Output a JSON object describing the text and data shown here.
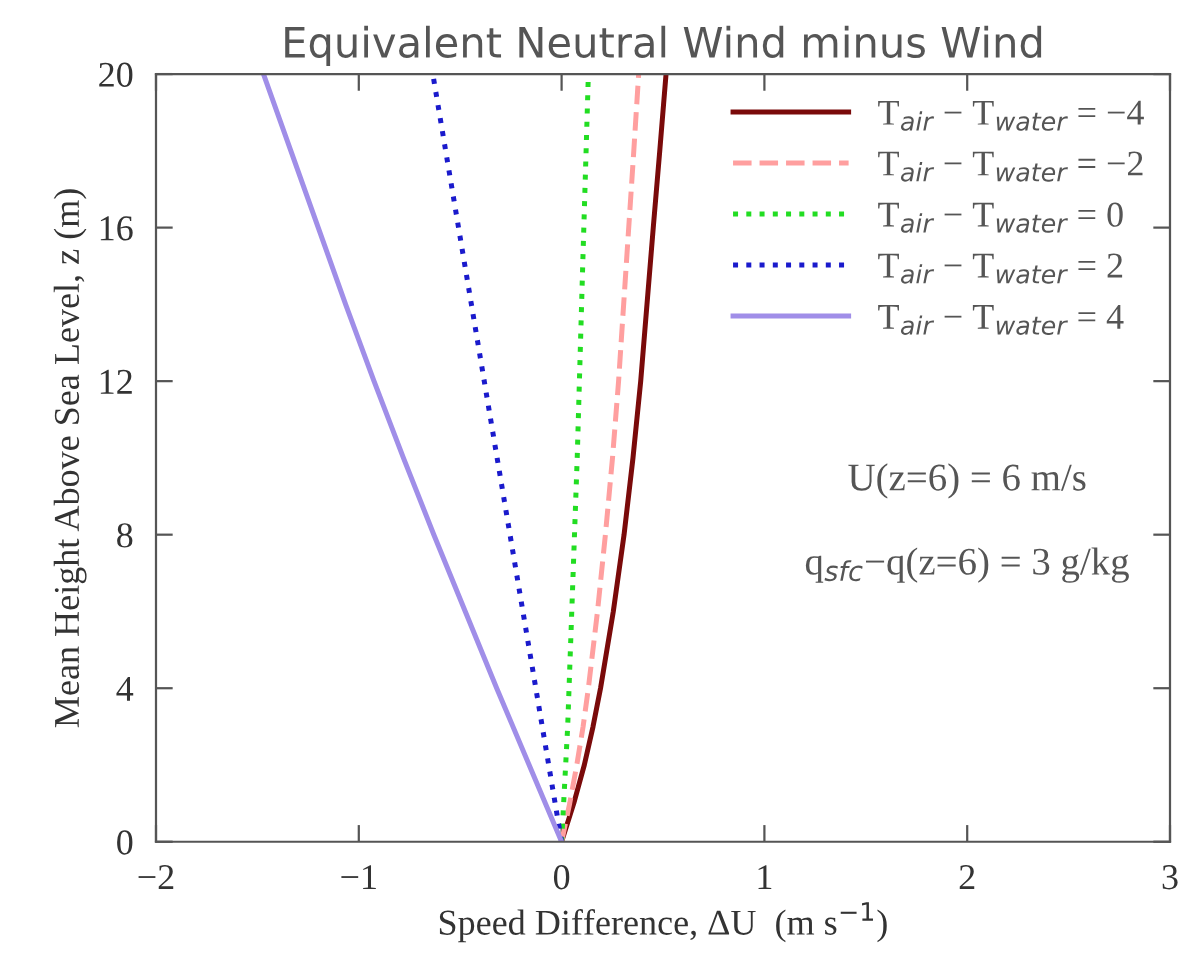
{
  "chart_data": {
    "type": "line",
    "title": "Equivalent Neutral Wind minus Wind",
    "xlabel": "Speed Difference, ΔU  (m s$^{−1}$)",
    "ylabel": "Mean Height Above Sea Level, z (m)",
    "xlim": [
      -2,
      3
    ],
    "ylim": [
      0,
      20
    ],
    "xticks": [
      -2,
      -1,
      0,
      1,
      2,
      3
    ],
    "yticks": [
      0,
      4,
      8,
      12,
      16,
      20
    ],
    "legend": "top right",
    "annotations": [
      "U(z=6) = 6 m/s",
      "q$_{sfc}$−q(z=6) = 3 g/kg"
    ],
    "series": [
      {
        "name": "T$_{air}$ − T$_{water}$ = −4",
        "color": "#7a0a0a",
        "line_style": "solid",
        "x": [
          0,
          0.06,
          0.112,
          0.155,
          0.192,
          0.255,
          0.308,
          0.352,
          0.39,
          0.421,
          0.452,
          0.484,
          0.515
        ],
        "values": [
          0,
          1,
          2,
          3,
          4,
          6,
          8,
          10,
          12,
          14,
          16,
          18,
          20
        ]
      },
      {
        "name": "T$_{air}$ − T$_{water}$ = −2",
        "color": "#ff9f9f",
        "line_style": "dashed",
        "x": [
          0,
          0.04,
          0.075,
          0.106,
          0.132,
          0.177,
          0.216,
          0.251,
          0.281,
          0.306,
          0.331,
          0.356,
          0.38
        ],
        "values": [
          0,
          1,
          2,
          3,
          4,
          6,
          8,
          10,
          12,
          14,
          16,
          18,
          20
        ]
      },
      {
        "name": "T$_{air}$ − T$_{water}$ = 0",
        "color": "#22dd22",
        "line_style": "dotted",
        "x": [
          0,
          0.03,
          0.077,
          0.104,
          0.132
        ],
        "values": [
          0,
          3,
          10,
          15,
          20
        ]
      },
      {
        "name": "T$_{air}$ − T$_{water}$ = 2",
        "color": "#1a1acc",
        "line_style": "dotted",
        "x": [
          0,
          -0.318,
          -0.635
        ],
        "values": [
          0,
          10,
          20
        ]
      },
      {
        "name": "T$_{air}$ − T$_{water}$ = 4",
        "color": "#a08ee8",
        "line_style": "solid",
        "x": [
          0,
          -0.16,
          -0.32,
          -0.475,
          -0.63,
          -0.78,
          -0.925,
          -1.065,
          -1.2,
          -1.335,
          -1.47
        ],
        "values": [
          0,
          2,
          4,
          6,
          8,
          10,
          12,
          14,
          16,
          18,
          20
        ]
      }
    ]
  }
}
